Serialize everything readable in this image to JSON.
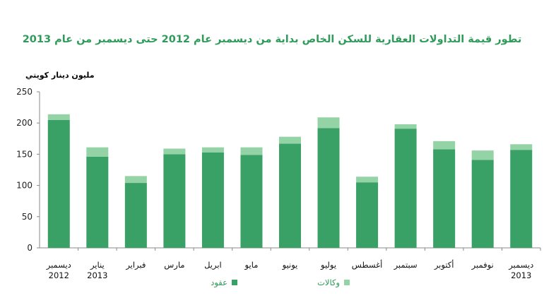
{
  "chart_data": {
    "type": "bar",
    "stacked": true,
    "title": "تطور قيمة التداولات العقارية للسكن الخاص بداية من ديسمبر عام 2012 حتى ديسمبر من عام  2013",
    "ylabel": "مليون دينار كويتي",
    "ylim": [
      0,
      250
    ],
    "yticks": [
      0,
      50,
      100,
      150,
      200,
      250
    ],
    "grid": false,
    "legend_position": "bottom",
    "categories": [
      [
        "ديسمبر",
        "2012"
      ],
      [
        "يناير",
        "2013"
      ],
      [
        "فبراير"
      ],
      [
        "مارس"
      ],
      [
        "ابريل"
      ],
      [
        "مايو"
      ],
      [
        "يونيو"
      ],
      [
        "يوليو"
      ],
      [
        "أغسطس"
      ],
      [
        "سبتمبر"
      ],
      [
        "أكتوبر"
      ],
      [
        "نوفمبر"
      ],
      [
        "ديسمبر",
        "2013"
      ]
    ],
    "series": [
      {
        "name": "عقود",
        "color": "#39a066",
        "values": [
          205,
          146,
          104,
          150,
          153,
          149,
          167,
          192,
          105,
          191,
          158,
          141,
          157
        ]
      },
      {
        "name": "وكالات",
        "color": "#93d3a6",
        "values": [
          9,
          15,
          11,
          9,
          8,
          12,
          11,
          17,
          9,
          7,
          13,
          15,
          9
        ]
      }
    ]
  }
}
